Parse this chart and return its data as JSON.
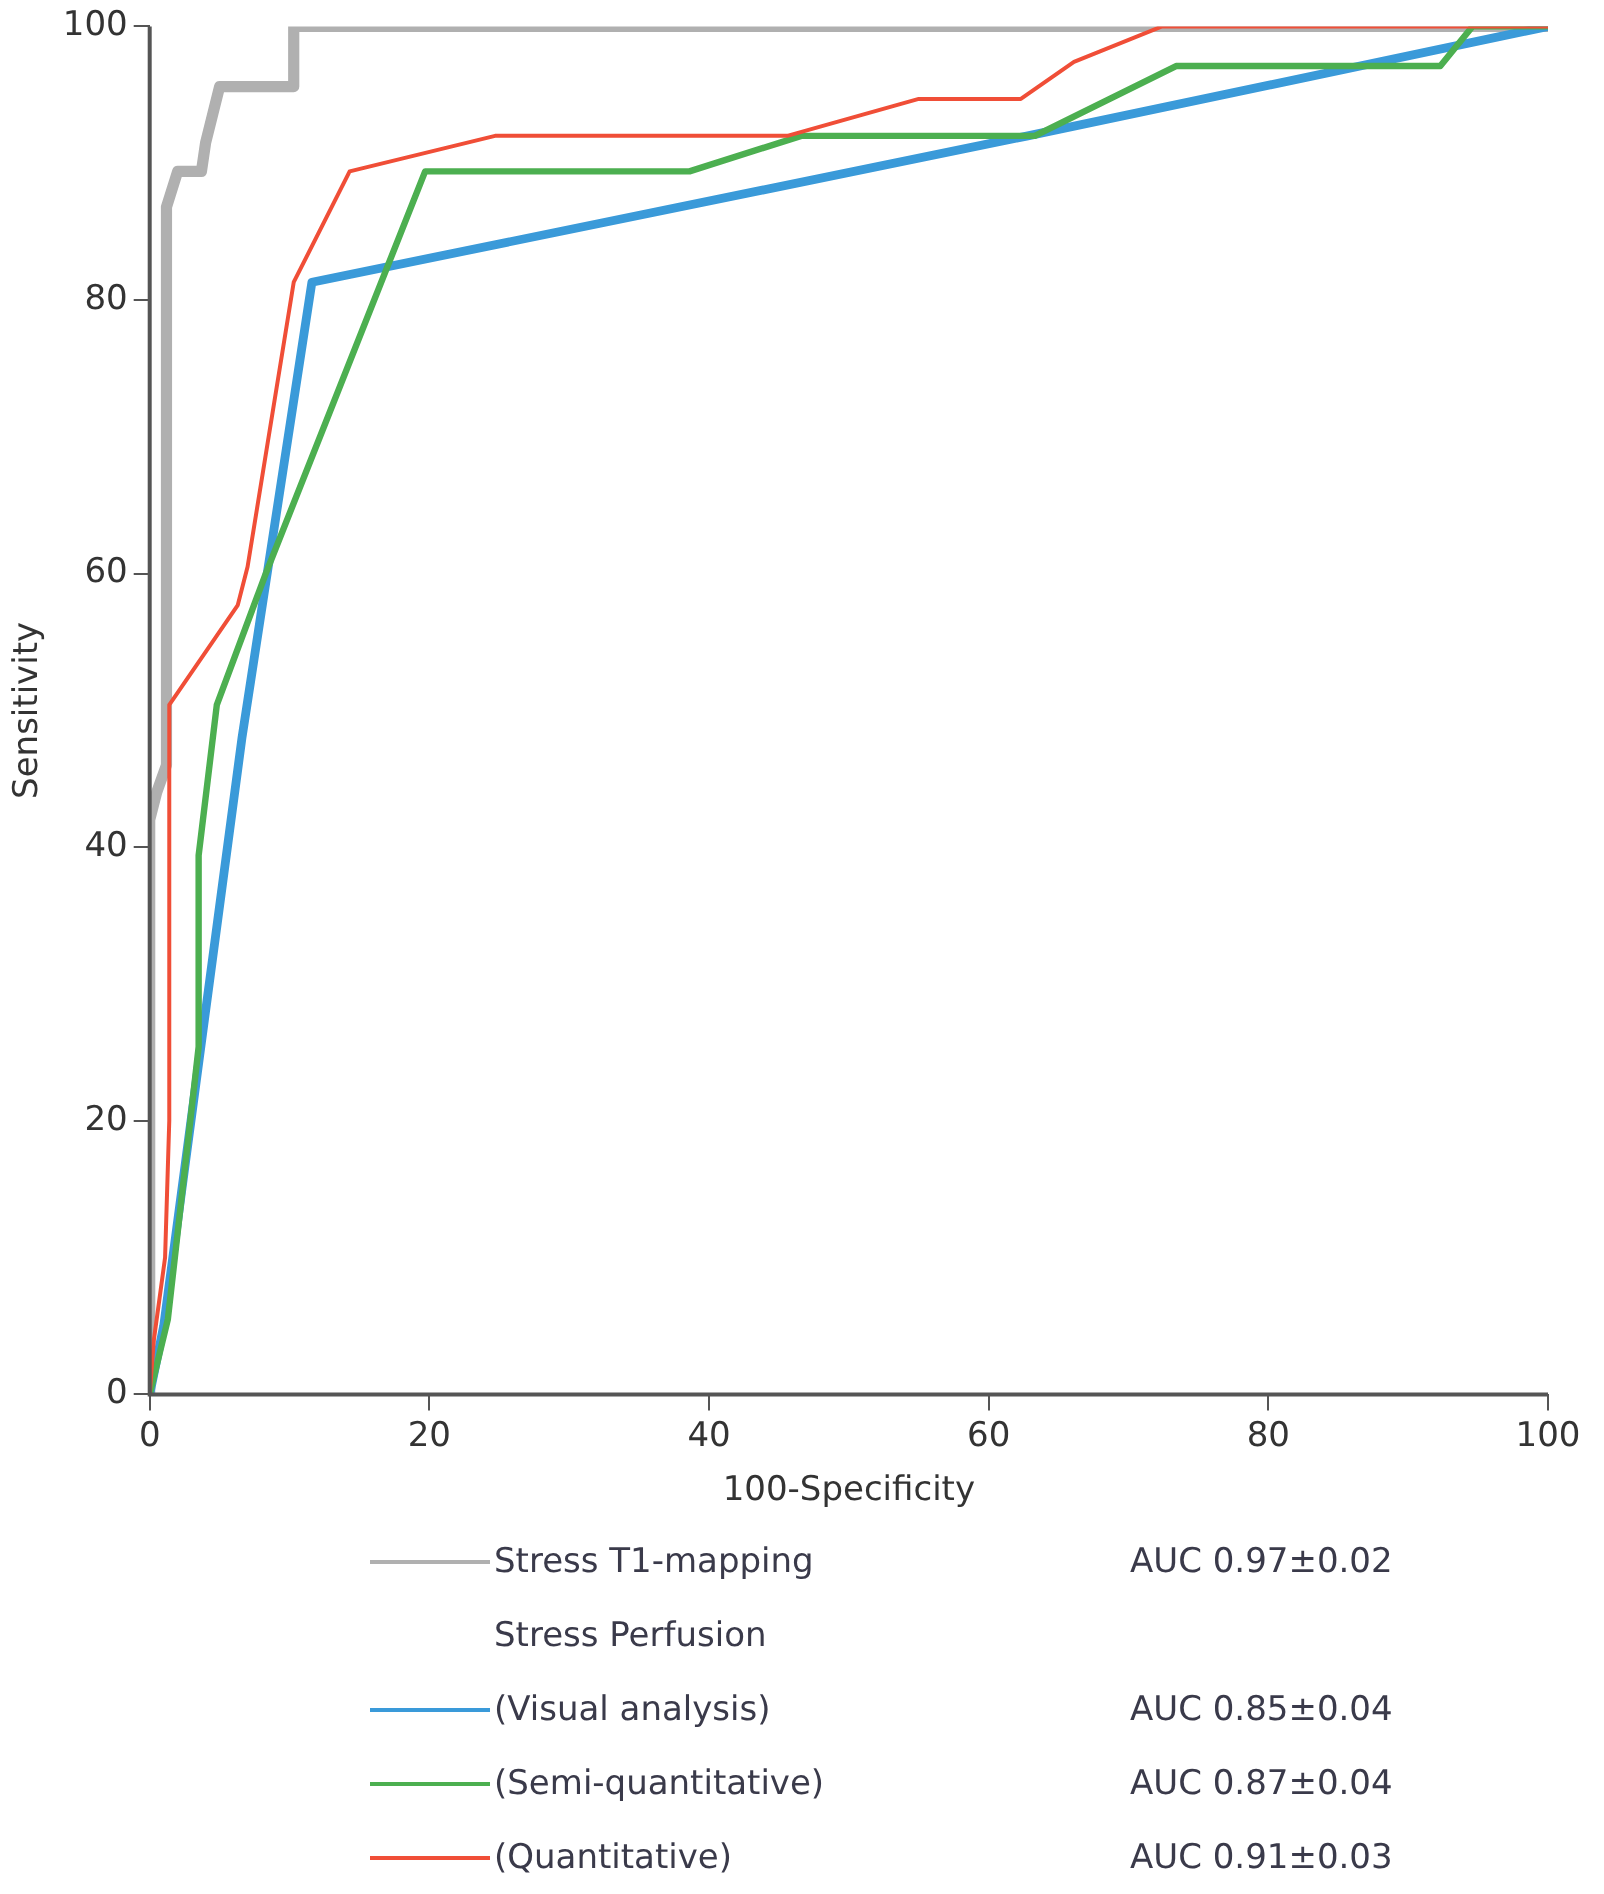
{
  "chart_data": {
    "type": "line",
    "xlabel": "100-Specificity",
    "ylabel": "Sensitivity",
    "xlim": [
      0,
      100
    ],
    "ylim": [
      0,
      100
    ],
    "xticks": [
      0,
      20,
      40,
      60,
      80,
      100
    ],
    "yticks": [
      0,
      20,
      40,
      60,
      80,
      100
    ],
    "grid": false,
    "legend": "bottom",
    "marker": "none",
    "line_style": "solid",
    "series": [
      {
        "name": "Stress T1-mapping",
        "color": "#b0b0b0",
        "x": [
          0,
          0,
          0.5,
          1.2,
          1.2,
          2,
          3.7,
          4,
          5,
          10.3,
          10.3,
          100
        ],
        "values": [
          0,
          42,
          44,
          46,
          86.8,
          89.4,
          89.4,
          91.5,
          95.6,
          95.6,
          100,
          100
        ]
      },
      {
        "name": "(Visual analysis)",
        "color": "#3a9ad9",
        "x": [
          0,
          1,
          6.6,
          11.6,
          62.8,
          100
        ],
        "values": [
          0,
          5,
          48,
          81.3,
          92,
          100
        ]
      },
      {
        "name": "(Semi-quantitative)",
        "color": "#4caf50",
        "x": [
          0,
          1.3,
          3.5,
          3.5,
          4.8,
          8.3,
          19.7,
          38.6,
          46.6,
          63.3,
          73.4,
          92.3,
          94.6,
          100
        ],
        "values": [
          0,
          5.5,
          25.4,
          39.4,
          50.4,
          60,
          89.4,
          89.4,
          92,
          92,
          97.1,
          97.1,
          100,
          100
        ]
      },
      {
        "name": "(Quantitative)",
        "color": "#f04e37",
        "x": [
          0,
          0.3,
          1.1,
          1.4,
          1.4,
          6.3,
          7,
          10.3,
          14.3,
          24.7,
          45.6,
          55,
          62.3,
          66.1,
          72.4,
          100
        ],
        "values": [
          0,
          4,
          10,
          20,
          50.4,
          57.7,
          60.5,
          81.3,
          89.4,
          92,
          92,
          94.7,
          94.7,
          97.4,
          100,
          100
        ]
      }
    ],
    "annotations": [
      "Stress Perfusion",
      "AUC 0.97±0.02",
      "AUC 0.85±0.04",
      "AUC 0.87±0.04",
      "AUC 0.91±0.03"
    ]
  }
}
